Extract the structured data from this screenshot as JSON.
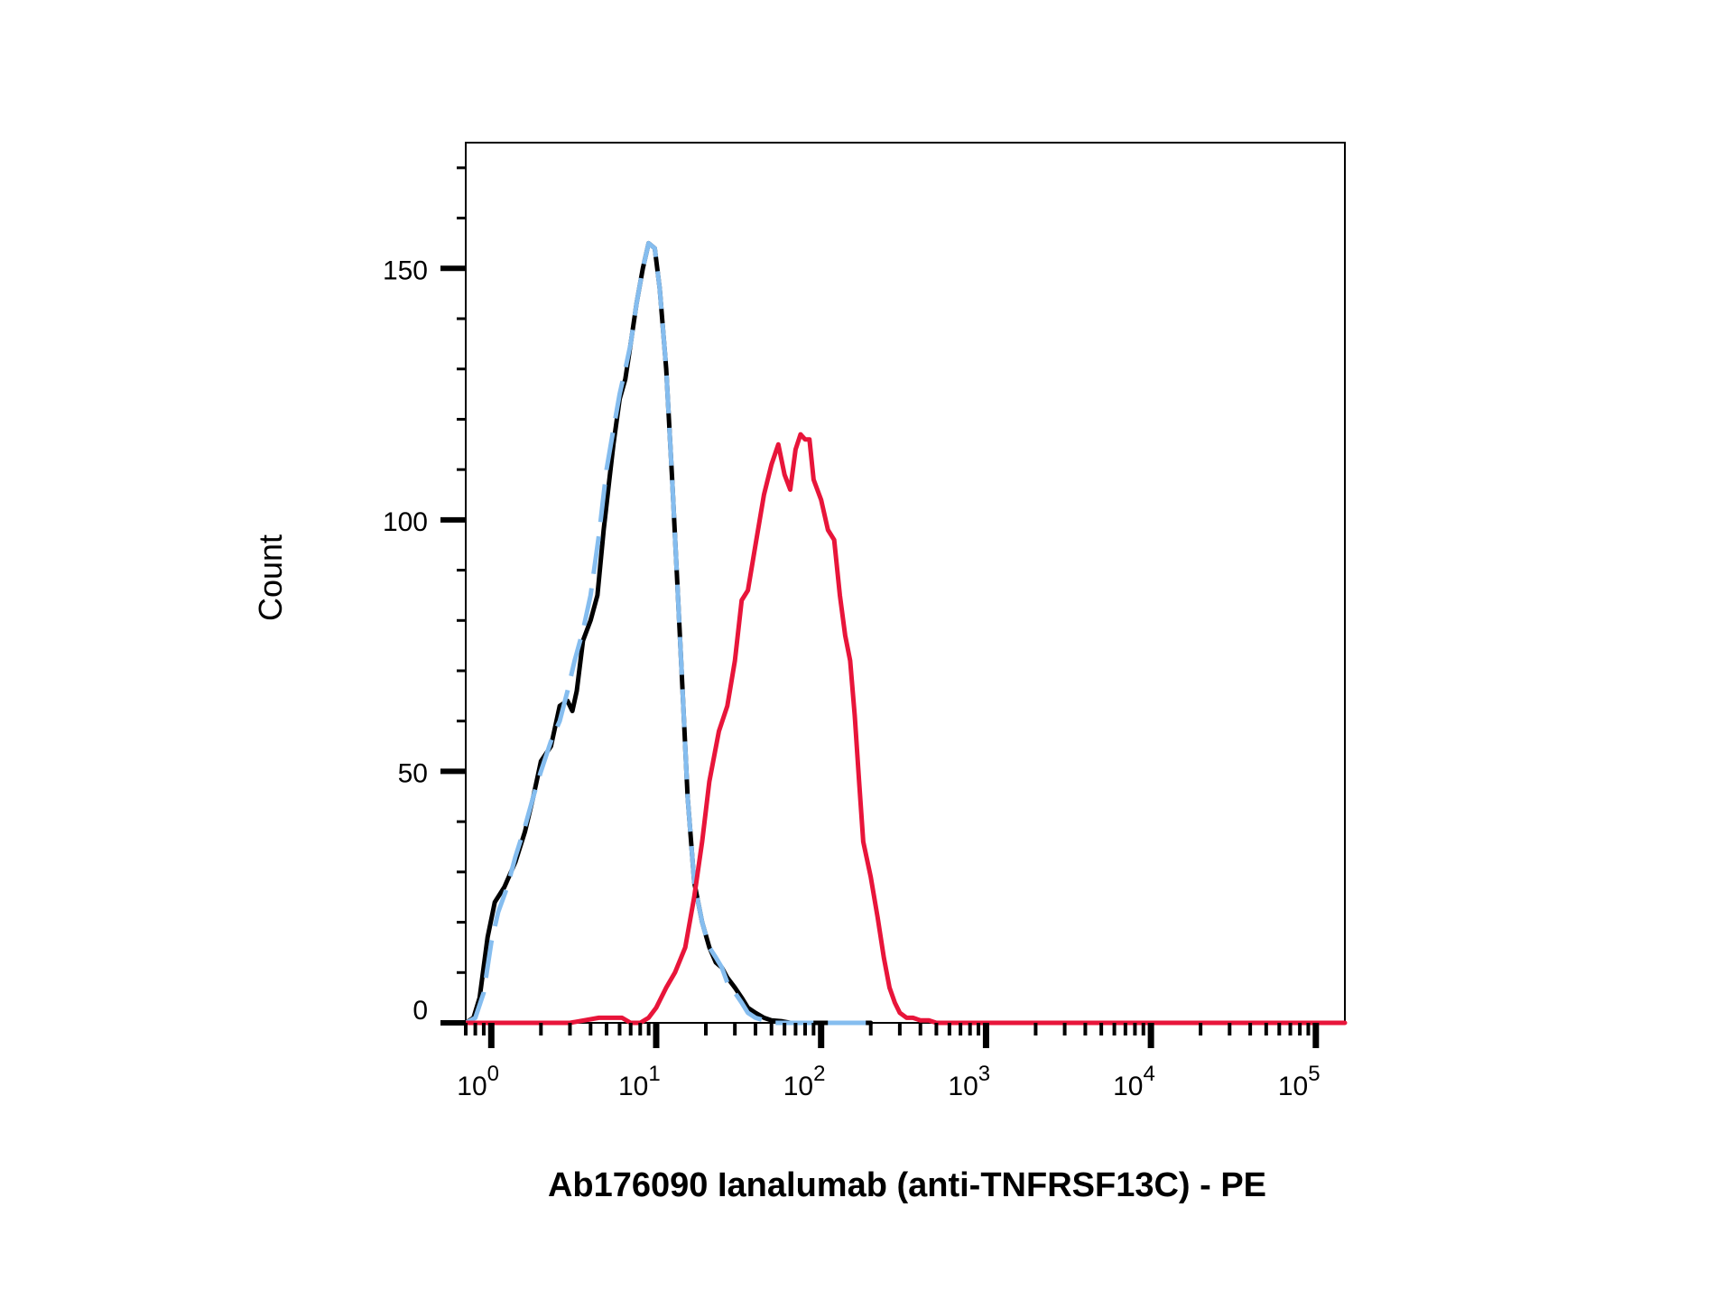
{
  "chart_data": {
    "type": "line",
    "title": "",
    "xlabel": "Ab176090 Ianalumab (anti-TNFRSF13C) - PE",
    "ylabel": "Count",
    "x_scale": "log",
    "xlim": [
      0.7,
      150000
    ],
    "ylim": [
      0,
      175
    ],
    "grid": false,
    "legend": "none",
    "y_ticks": [
      0,
      50,
      100,
      150
    ],
    "y_tick_labels": [
      "0",
      "50",
      "100",
      "150"
    ],
    "x_ticks": [
      1,
      10,
      100,
      1000,
      10000,
      100000
    ],
    "x_tick_labels": [
      {
        "base": "10",
        "exp": "0"
      },
      {
        "base": "10",
        "exp": "1"
      },
      {
        "base": "10",
        "exp": "2"
      },
      {
        "base": "10",
        "exp": "3"
      },
      {
        "base": "10",
        "exp": "4"
      },
      {
        "base": "10",
        "exp": "5"
      }
    ],
    "series": [
      {
        "color": "#000000",
        "style": "solid",
        "x": [
          0.7,
          0.78,
          0.85,
          0.95,
          1.05,
          1.2,
          1.4,
          1.6,
          1.8,
          2.0,
          2.3,
          2.6,
          2.9,
          3.1,
          3.3,
          3.6,
          4.0,
          4.4,
          4.8,
          5.2,
          5.5,
          6.0,
          6.5,
          7.0,
          7.6,
          8.3,
          9.0,
          9.8,
          10.5,
          11.5,
          12.5,
          13.5,
          14.5,
          15.5,
          17,
          19,
          21,
          23,
          25,
          27,
          30,
          33,
          36,
          40,
          45,
          50,
          58,
          65,
          75,
          85,
          100,
          115,
          130,
          150,
          175,
          200
        ],
        "y": [
          0,
          1,
          5,
          17,
          24,
          27,
          32,
          38,
          45,
          52,
          55,
          63,
          64,
          62,
          66,
          76,
          80,
          85,
          98,
          108,
          115,
          124,
          128,
          135,
          143,
          150,
          155,
          154,
          146,
          130,
          108,
          86,
          65,
          45,
          28,
          20,
          15,
          12,
          11,
          9,
          7,
          5,
          3,
          2,
          1,
          0.5,
          0.3,
          0,
          0,
          0,
          0,
          0,
          0,
          0,
          0,
          0
        ]
      },
      {
        "color": "#85BDEF",
        "style": "dashed",
        "x": [
          0.7,
          0.8,
          0.9,
          1.0,
          1.1,
          1.25,
          1.4,
          1.6,
          1.8,
          2.0,
          2.3,
          2.6,
          2.9,
          3.2,
          3.6,
          4.0,
          4.5,
          5.0,
          5.5,
          6.0,
          6.5,
          7.0,
          7.6,
          8.3,
          9.0,
          9.8,
          10.5,
          11.5,
          12.5,
          13.5,
          14.5,
          15.5,
          17,
          19,
          21,
          23,
          25,
          27,
          30,
          33,
          36,
          40,
          45,
          50,
          60,
          75,
          100,
          130,
          175,
          200
        ],
        "y": [
          0,
          1,
          6,
          16,
          22,
          27,
          33,
          39,
          45,
          50,
          56,
          60,
          66,
          72,
          78,
          85,
          97,
          110,
          118,
          125,
          130,
          135,
          143,
          150,
          155,
          154,
          146,
          130,
          108,
          86,
          65,
          45,
          28,
          20,
          15,
          13,
          11,
          8,
          6,
          4,
          2,
          1,
          0.5,
          0,
          0,
          0,
          0,
          0,
          0,
          0
        ]
      },
      {
        "color": "#E8153A",
        "style": "solid",
        "x": [
          0.7,
          1,
          3,
          4.5,
          5.5,
          6.2,
          7.0,
          8.0,
          9.0,
          10,
          11.5,
          13,
          15,
          17,
          19,
          21,
          24,
          27,
          30,
          33,
          36,
          40,
          45,
          50,
          55,
          60,
          65,
          70,
          75,
          80,
          85,
          90,
          100,
          110,
          120,
          130,
          140,
          150,
          160,
          170,
          180,
          200,
          220,
          240,
          260,
          280,
          300,
          330,
          360,
          400,
          450,
          500,
          550,
          600,
          700,
          800,
          900,
          1000,
          1200,
          1500,
          2000,
          3000,
          5000,
          10000,
          150000
        ],
        "y": [
          0,
          0,
          0,
          1,
          1,
          1,
          0,
          0,
          1,
          3,
          7,
          10,
          15,
          25,
          36,
          48,
          58,
          63,
          72,
          84,
          86,
          95,
          105,
          111,
          115,
          109,
          106,
          114,
          117,
          116,
          116,
          108,
          104,
          98,
          96,
          85,
          77,
          72,
          61,
          48,
          36,
          29,
          21,
          13,
          7,
          4,
          2,
          1,
          1,
          0.5,
          0.5,
          0,
          0,
          0,
          0,
          0,
          0,
          0,
          0,
          0,
          0,
          0,
          0,
          0,
          0
        ]
      }
    ]
  }
}
